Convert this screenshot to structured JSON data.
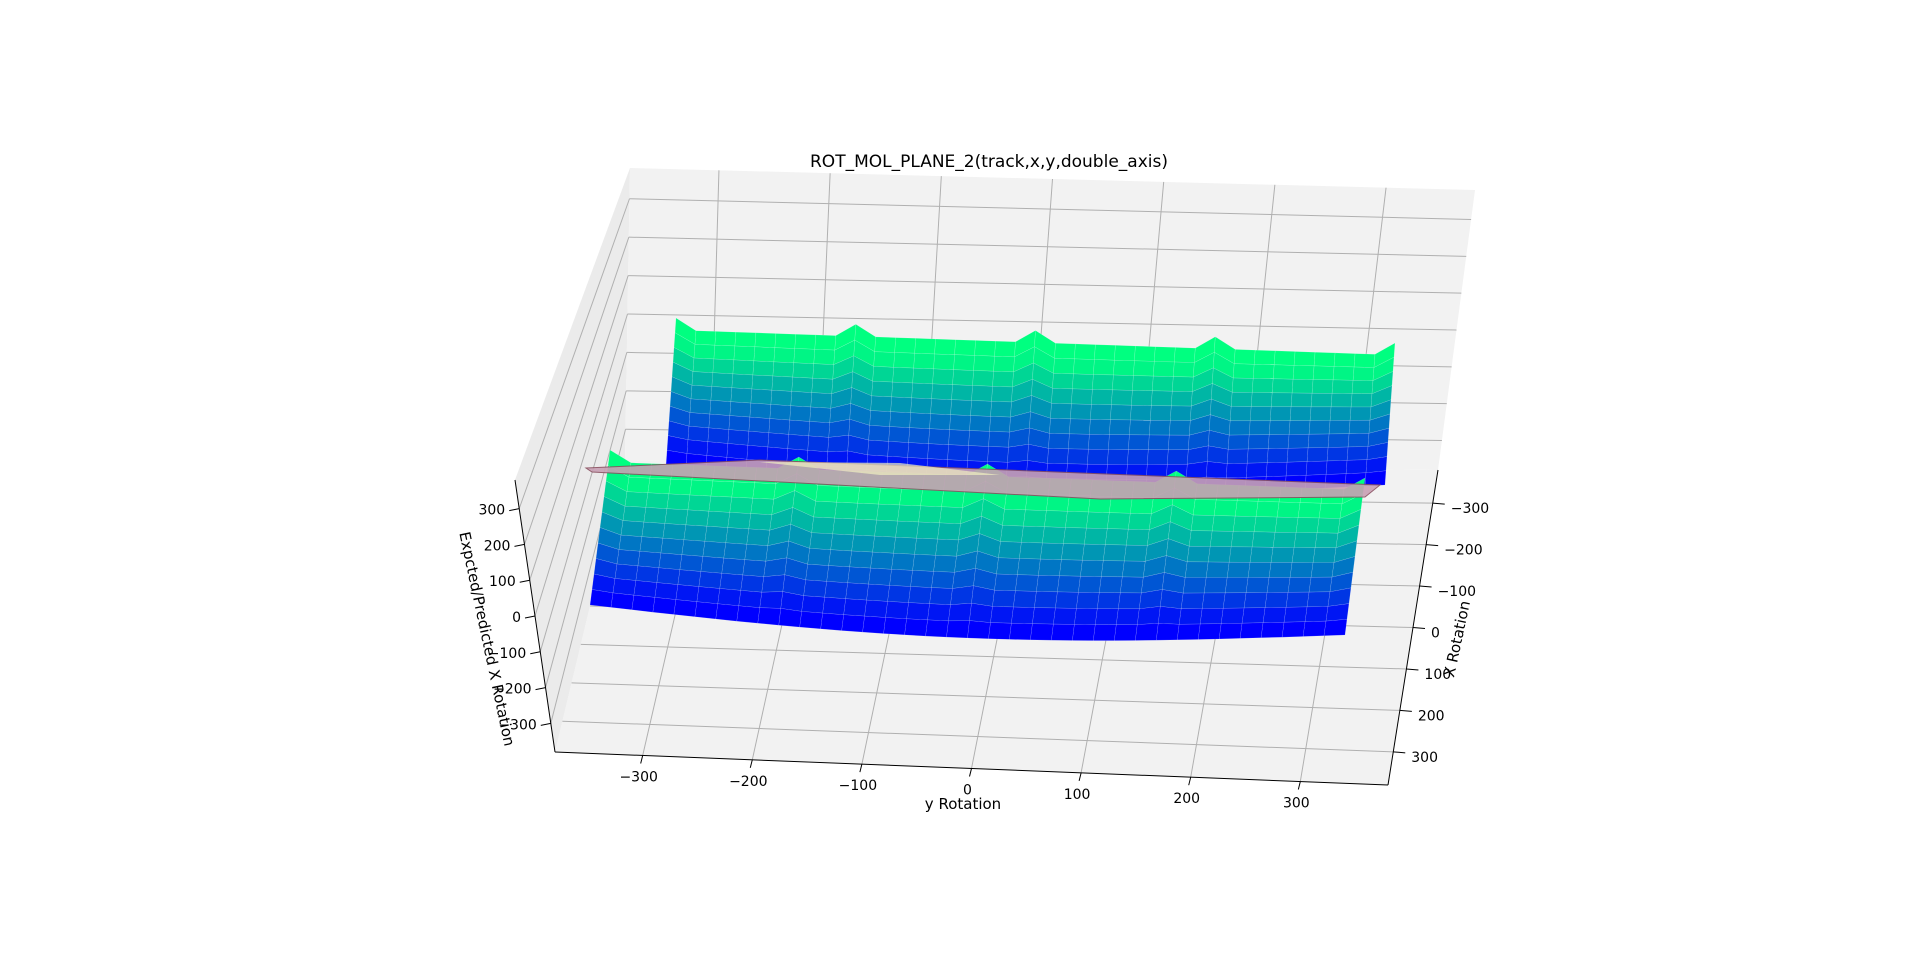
{
  "chart_data": {
    "type": "surface3d",
    "title": "ROT_MOL_PLANE_2(track,x,y,double_axis)",
    "xlabel": "y Rotation",
    "ylabel": "X Rotation",
    "zlabel": "Expcted/Predicted X Rotation",
    "x_ticks": [
      "−300",
      "−200",
      "−100",
      "0",
      "100",
      "200",
      "300"
    ],
    "y_ticks": [
      "−300",
      "−200",
      "−100",
      "0",
      "100",
      "200",
      "300"
    ],
    "z_ticks": [
      "300",
      "200",
      "100",
      "0",
      "−100",
      "−200",
      "−300"
    ],
    "xlim": [
      -380,
      380
    ],
    "ylim": [
      -380,
      380
    ],
    "zlim": [
      -380,
      380
    ],
    "grid": true,
    "colormap": "winter",
    "colors": {
      "pane": "#f2f2f2",
      "grid": "#b0b0b0",
      "surface_low": "#0000ff",
      "surface_high": "#00ff80",
      "plane": "#c8a0b4"
    },
    "surfaces": [
      {
        "description_kind": "error surface (two bands with periodic ridges)",
        "x_range": [
          -360,
          360
        ],
        "y_range": [
          -360,
          360
        ],
        "z_range": [
          -330,
          330
        ]
      },
      {
        "description_kind": "flat reference plane",
        "z": 0
      }
    ]
  }
}
